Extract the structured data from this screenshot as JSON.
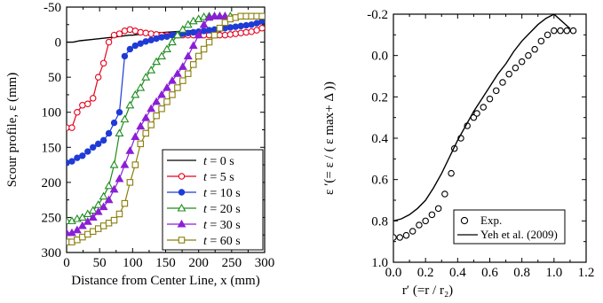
{
  "chart_data": [
    {
      "type": "line",
      "xlabel": "Distance from Center Line, x (mm)",
      "ylabel": "Scour profile,  ε  (mm)",
      "xlim": [
        0,
        300
      ],
      "ylim": [
        -50,
        300
      ],
      "y_inverted": true,
      "xticks": [
        "0",
        "50",
        "100",
        "150",
        "200",
        "250",
        "300"
      ],
      "yticks": [
        "-50",
        "0",
        "50",
        "100",
        "150",
        "200",
        "250",
        "300"
      ],
      "legend_position": "bottom-right",
      "series": [
        {
          "name": "t =  0 s",
          "marker": "none",
          "color": "#000000",
          "x": [
            0,
            10,
            20,
            40,
            60,
            80,
            95,
            100,
            120,
            150,
            200,
            250,
            300
          ],
          "y": [
            0,
            0,
            -2,
            -4,
            -6,
            -8,
            -10,
            -10,
            -12,
            -14,
            -17,
            -20,
            -27
          ]
        },
        {
          "name": "t =  5 s",
          "marker": "circle-open",
          "color": "#e8001c",
          "x": [
            0,
            8,
            16,
            24,
            32,
            40,
            48,
            56,
            64,
            72,
            80,
            88,
            96,
            104,
            112,
            120,
            128,
            136,
            144,
            152,
            160,
            168,
            176,
            184,
            192,
            200,
            208,
            216,
            224,
            232,
            240,
            248,
            256,
            264,
            272,
            280,
            288,
            296
          ],
          "y": [
            122,
            122,
            100,
            90,
            88,
            80,
            50,
            30,
            0,
            -10,
            -12,
            -16,
            -18,
            -16,
            -14,
            -13,
            -12,
            -11,
            -10,
            -10,
            -10,
            -10,
            -10,
            -10,
            -10,
            -10,
            -10,
            -10,
            -10,
            -10,
            -10,
            -11,
            -12,
            -13,
            -14,
            -15,
            -17,
            -20
          ]
        },
        {
          "name": "t = 10 s",
          "marker": "circle-filled",
          "color": "#1f3bd6",
          "x": [
            0,
            8,
            16,
            24,
            32,
            40,
            48,
            56,
            64,
            72,
            80,
            88,
            96,
            104,
            112,
            120,
            128,
            136,
            144,
            152,
            160,
            168,
            176,
            184,
            192,
            200,
            208,
            216,
            224,
            232,
            240,
            248,
            256,
            264,
            272,
            280,
            288,
            296
          ],
          "y": [
            172,
            170,
            165,
            162,
            156,
            150,
            145,
            140,
            130,
            115,
            100,
            20,
            10,
            5,
            2,
            -1,
            -3,
            -5,
            -7,
            -8,
            -10,
            -11,
            -12,
            -13,
            -14,
            -15,
            -16,
            -17,
            -18,
            -19,
            -20,
            -21,
            -22,
            -23,
            -24,
            -25,
            -27,
            -30
          ]
        },
        {
          "name": "t = 20 s",
          "marker": "triangle-open",
          "color": "#1e8c1e",
          "x": [
            0,
            8,
            16,
            24,
            32,
            40,
            48,
            56,
            64,
            72,
            80,
            88,
            96,
            104,
            112,
            120,
            128,
            136,
            144,
            152,
            160,
            168,
            176,
            184,
            192,
            200,
            208,
            216,
            224,
            232,
            240,
            248
          ],
          "y": [
            255,
            255,
            252,
            250,
            245,
            240,
            232,
            220,
            205,
            175,
            130,
            110,
            90,
            75,
            65,
            50,
            40,
            28,
            20,
            10,
            0,
            -10,
            -18,
            -25,
            -30,
            -33,
            -36,
            -37,
            -37,
            -37,
            -37,
            -37
          ]
        },
        {
          "name": "t = 30 s",
          "marker": "triangle-filled",
          "color": "#8b1fd6",
          "x": [
            0,
            8,
            16,
            24,
            32,
            40,
            48,
            56,
            64,
            72,
            80,
            88,
            96,
            104,
            112,
            120,
            128,
            136,
            144,
            152,
            160,
            168,
            176,
            184,
            192,
            200,
            208,
            216,
            224,
            232,
            240
          ],
          "y": [
            272,
            272,
            268,
            262,
            256,
            250,
            242,
            235,
            225,
            210,
            195,
            175,
            155,
            135,
            120,
            108,
            95,
            85,
            75,
            65,
            55,
            45,
            35,
            20,
            5,
            -10,
            -25,
            -35,
            -37,
            -37,
            -37
          ]
        },
        {
          "name": "t = 60 s",
          "marker": "square-open",
          "color": "#8a7d0a",
          "x": [
            0,
            8,
            16,
            24,
            32,
            40,
            48,
            56,
            64,
            72,
            80,
            88,
            96,
            104,
            112,
            120,
            128,
            136,
            144,
            152,
            160,
            168,
            176,
            184,
            192,
            200,
            208,
            216,
            224,
            232,
            240,
            248,
            256,
            264,
            272,
            280,
            288,
            296
          ],
          "y": [
            285,
            285,
            282,
            278,
            274,
            270,
            266,
            262,
            258,
            254,
            245,
            230,
            200,
            175,
            145,
            130,
            118,
            105,
            95,
            85,
            75,
            65,
            55,
            45,
            32,
            20,
            10,
            0,
            -10,
            -20,
            -28,
            -33,
            -35,
            -37,
            -37,
            -37,
            -37,
            -37
          ]
        }
      ]
    },
    {
      "type": "scatter",
      "xlabel": "r′ (=r / r₂)",
      "ylabel": "ε ′(= ε  / ( ε max+ Δ ))",
      "xlim": [
        0,
        1.2
      ],
      "ylim": [
        -0.2,
        1.0
      ],
      "y_inverted": true,
      "xticks": [
        "0.0",
        "0.2",
        "0.4",
        "0.6",
        "0.8",
        "1.0",
        "1.2"
      ],
      "yticks": [
        "-0.2",
        "0.0",
        "0.2",
        "0.4",
        "0.6",
        "0.8",
        "1.0"
      ],
      "legend_position": "bottom-right",
      "series": [
        {
          "name": "Exp.",
          "marker": "circle-open",
          "x": [
            0.0,
            0.04,
            0.08,
            0.12,
            0.16,
            0.2,
            0.24,
            0.28,
            0.32,
            0.36,
            0.38,
            0.42,
            0.46,
            0.5,
            0.52,
            0.56,
            0.6,
            0.64,
            0.68,
            0.72,
            0.76,
            0.8,
            0.84,
            0.88,
            0.92,
            0.96,
            1.0,
            1.04,
            1.08,
            1.12
          ],
          "y": [
            0.88,
            0.88,
            0.87,
            0.85,
            0.82,
            0.8,
            0.77,
            0.74,
            0.67,
            0.57,
            0.45,
            0.4,
            0.34,
            0.3,
            0.28,
            0.25,
            0.21,
            0.17,
            0.13,
            0.09,
            0.06,
            0.03,
            0.0,
            -0.03,
            -0.07,
            -0.1,
            -0.12,
            -0.12,
            -0.12,
            -0.12
          ]
        },
        {
          "name": "Yeh et al. (2009)",
          "marker": "none",
          "x": [
            0.0,
            0.05,
            0.1,
            0.15,
            0.2,
            0.25,
            0.3,
            0.35,
            0.4,
            0.45,
            0.5,
            0.55,
            0.6,
            0.65,
            0.7,
            0.75,
            0.8,
            0.85,
            0.9,
            0.95,
            1.0,
            1.1
          ],
          "y": [
            0.8,
            0.79,
            0.77,
            0.74,
            0.7,
            0.64,
            0.57,
            0.49,
            0.41,
            0.34,
            0.27,
            0.21,
            0.15,
            0.09,
            0.04,
            -0.02,
            -0.07,
            -0.11,
            -0.15,
            -0.18,
            -0.2,
            -0.13
          ]
        }
      ]
    }
  ],
  "legend_left": {
    "entries": [
      {
        "prefix": "t",
        "text": " =  0 s"
      },
      {
        "prefix": "t",
        "text": " =  5 s"
      },
      {
        "prefix": "t",
        "text": " = 10 s"
      },
      {
        "prefix": "t",
        "text": " = 20 s"
      },
      {
        "prefix": "t",
        "text": " = 30 s"
      },
      {
        "prefix": "t",
        "text": " = 60 s"
      }
    ]
  },
  "legend_right": {
    "entries": [
      "Exp.",
      "Yeh et al. (2009)"
    ]
  }
}
